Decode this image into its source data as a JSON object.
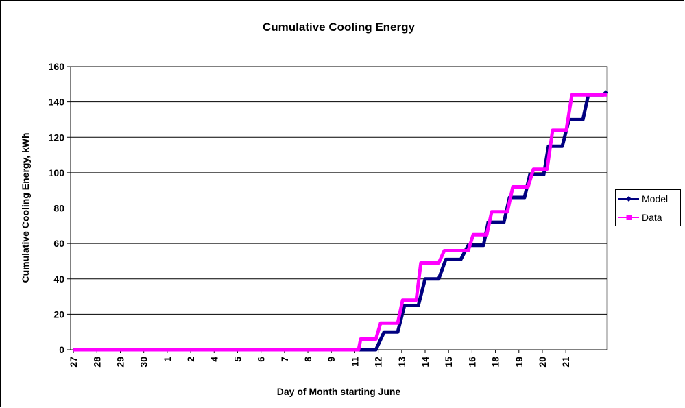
{
  "chart_data": {
    "type": "line",
    "title": "Cumulative Cooling Energy",
    "x_label": "Day of Month starting  June",
    "y_label": "Cumulative Cooling Energy, kWh",
    "xlim": [
      -0.12,
      22.75
    ],
    "ylim": [
      0,
      160
    ],
    "yticks": [
      0,
      20,
      40,
      60,
      80,
      100,
      120,
      140,
      160
    ],
    "xticks": [
      {
        "value": 0,
        "label": "27"
      },
      {
        "value": 1,
        "label": "28"
      },
      {
        "value": 2,
        "label": "29"
      },
      {
        "value": 3,
        "label": "30"
      },
      {
        "value": 4,
        "label": "1"
      },
      {
        "value": 5,
        "label": "2"
      },
      {
        "value": 6,
        "label": "4"
      },
      {
        "value": 7,
        "label": "5"
      },
      {
        "value": 8,
        "label": "6"
      },
      {
        "value": 9,
        "label": "7"
      },
      {
        "value": 10,
        "label": "8"
      },
      {
        "value": 11,
        "label": "9"
      },
      {
        "value": 12,
        "label": "11"
      },
      {
        "value": 13,
        "label": "12"
      },
      {
        "value": 14,
        "label": "13"
      },
      {
        "value": 15,
        "label": "14"
      },
      {
        "value": 16,
        "label": "15"
      },
      {
        "value": 17,
        "label": "16"
      },
      {
        "value": 18,
        "label": "18"
      },
      {
        "value": 19,
        "label": "19"
      },
      {
        "value": 20,
        "label": "20"
      },
      {
        "value": 21,
        "label": "21"
      }
    ],
    "grid": true,
    "legend": "right",
    "series": [
      {
        "name": "Model",
        "color": "#000080",
        "x": [
          0,
          12.9,
          13.25,
          13.83,
          14.12,
          14.71,
          15.0,
          15.58,
          15.88,
          16.52,
          16.84,
          17.49,
          17.69,
          18.36,
          18.6,
          19.24,
          19.47,
          20.06,
          20.26,
          20.85,
          21.14,
          21.73,
          21.96,
          22.6,
          22.75
        ],
        "values": [
          0,
          0,
          10,
          10,
          25,
          25,
          40,
          40,
          51,
          51,
          59,
          59,
          72,
          72,
          86,
          86,
          99,
          99,
          115,
          115,
          130,
          130,
          144,
          144,
          146
        ]
      },
      {
        "name": "Data",
        "color": "#ff00ff",
        "x": [
          0,
          12.16,
          12.25,
          12.9,
          13.1,
          13.83,
          14.04,
          14.62,
          14.82,
          15.58,
          15.82,
          16.84,
          17.05,
          17.63,
          17.84,
          18.51,
          18.74,
          19.39,
          19.62,
          20.2,
          20.44,
          21.02,
          21.26,
          22.75
        ],
        "values": [
          0,
          0,
          6,
          6,
          15,
          15,
          28,
          28,
          49,
          49,
          56,
          56,
          65,
          65,
          78,
          78,
          92,
          92,
          102,
          102,
          124,
          124,
          144,
          144
        ]
      }
    ]
  }
}
